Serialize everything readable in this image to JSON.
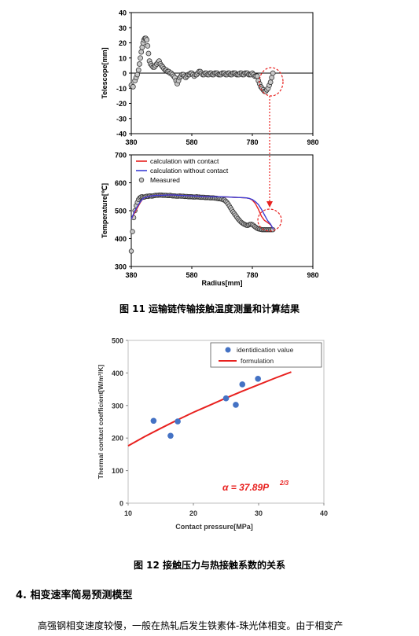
{
  "figure11": {
    "caption": "图 11  运输链传输接触温度测量和计算结果",
    "top_chart": {
      "ylabel": "Telescope[mm]",
      "yticks": [
        "40",
        "30",
        "20",
        "10",
        "0",
        "-10",
        "-20",
        "-30",
        "-40"
      ],
      "xticks": [
        "380",
        "580",
        "780",
        "980"
      ]
    },
    "bottom_chart": {
      "ylabel": "Temperature[℃]",
      "xlabel": "Radius[mm]",
      "yticks": [
        "700",
        "600",
        "500",
        "400",
        "300"
      ],
      "xticks": [
        "380",
        "580",
        "780",
        "980"
      ],
      "legend": [
        "calculation with contact",
        "calculation without contact",
        "Measured"
      ]
    }
  },
  "figure12": {
    "caption": "图 12  接触压力与热接触系数的关系",
    "ylabel": "Thermal contact coefficient[W/m²/K]",
    "xlabel": "Contact pressure[MPa]",
    "yticks": [
      "500",
      "400",
      "300",
      "200",
      "100",
      "0"
    ],
    "xticks": [
      "10",
      "20",
      "30",
      "40"
    ],
    "legend": [
      "identidication value",
      "formulation"
    ],
    "equation": "α = 37.89P",
    "equation_exp": "2/3"
  },
  "section": {
    "title": "4.  相变速率简易预测模型",
    "paragraph_start": "高强钢相变速度较慢，一般在热轧后发生铁素体-珠光体相变。由于相变产"
  },
  "colors": {
    "red_line": "#e8211f",
    "blue_line": "#3b3fd6",
    "blue_points": "#4472c4",
    "marker_fill": "#c8c8c8"
  },
  "chart_data": [
    {
      "type": "scatter",
      "title": "",
      "xlabel": "",
      "ylabel": "Telescope[mm]",
      "xlim": [
        380,
        980
      ],
      "ylim": [
        -40,
        40
      ],
      "grid": false,
      "series": [
        {
          "name": "",
          "x": [
            380,
            386,
            392,
            396,
            400,
            404,
            407,
            410,
            413,
            416,
            419,
            422,
            425,
            428,
            431,
            434,
            437,
            440,
            444,
            448,
            452,
            456,
            460,
            464,
            468,
            472,
            476,
            480,
            484,
            488,
            492,
            496,
            500,
            504,
            508,
            512,
            516,
            520,
            524,
            528,
            532,
            536,
            540,
            544,
            548,
            552,
            556,
            560,
            564,
            568,
            572,
            576,
            580,
            584,
            588,
            592,
            596,
            600,
            604,
            608,
            612,
            616,
            620,
            624,
            628,
            632,
            636,
            640,
            644,
            648,
            652,
            656,
            660,
            664,
            668,
            672,
            676,
            680,
            684,
            688,
            692,
            696,
            700,
            704,
            708,
            712,
            716,
            720,
            724,
            728,
            732,
            736,
            740,
            744,
            748,
            752,
            756,
            760,
            764,
            768,
            772,
            776,
            780,
            784,
            788,
            792,
            796,
            800,
            804,
            808,
            812,
            816,
            820,
            824,
            828,
            832,
            836,
            840,
            844,
            848
          ],
          "y": [
            -8,
            -9,
            -5,
            -3,
            -1,
            2,
            6,
            10,
            14,
            17,
            20,
            22,
            23,
            23,
            22,
            18,
            13,
            8,
            6,
            5,
            4,
            4,
            5,
            6,
            7,
            8,
            6,
            5,
            4,
            3,
            2,
            2,
            1,
            1,
            0,
            0,
            -1,
            -2,
            -3,
            -5,
            -7,
            -5,
            -3,
            -2,
            -1,
            -1,
            -2,
            -3,
            -2,
            -1,
            -1,
            0,
            0,
            -1,
            -2,
            -1,
            -1,
            0,
            1,
            1,
            0,
            -1,
            -1,
            0,
            0,
            -1,
            -1,
            0,
            0,
            -1,
            -1,
            0,
            0,
            0,
            -1,
            -1,
            -1,
            0,
            0,
            0,
            -1,
            -1,
            0,
            0,
            -1,
            -1,
            0,
            0,
            0,
            -1,
            -1,
            -1,
            0,
            0,
            -1,
            -1,
            0,
            0,
            0,
            -1,
            -1,
            -1,
            0,
            -1,
            -2,
            -2,
            -2,
            -5,
            -7,
            -9,
            -10,
            -11,
            -12,
            -12,
            -11,
            -10,
            -8,
            -6,
            -3,
            0
          ]
        }
      ]
    },
    {
      "type": "line",
      "title": "",
      "xlabel": "Radius[mm]",
      "ylabel": "Temperature[℃]",
      "xlim": [
        380,
        980
      ],
      "ylim": [
        300,
        700
      ],
      "legend_position": "top-left",
      "grid": false,
      "series": [
        {
          "name": "calculation with contact",
          "x": [
            380,
            390,
            400,
            410,
            420,
            440,
            460,
            480,
            500,
            520,
            540,
            560,
            580,
            600,
            620,
            640,
            660,
            680,
            700,
            720,
            740,
            760,
            770,
            780,
            790,
            800,
            810,
            820,
            830,
            840,
            850
          ],
          "y": [
            470,
            490,
            510,
            530,
            545,
            552,
            555,
            555,
            556,
            556,
            555,
            554,
            553,
            552,
            551,
            550,
            550,
            550,
            549,
            548,
            547,
            546,
            544,
            538,
            525,
            505,
            480,
            465,
            458,
            450,
            433
          ]
        },
        {
          "name": "calculation without contact",
          "x": [
            380,
            390,
            400,
            410,
            420,
            440,
            460,
            480,
            500,
            520,
            540,
            560,
            580,
            600,
            620,
            640,
            660,
            680,
            700,
            720,
            740,
            760,
            770,
            780,
            790,
            800,
            810,
            820,
            830,
            840,
            850
          ],
          "y": [
            470,
            495,
            515,
            532,
            545,
            552,
            555,
            555,
            556,
            556,
            555,
            554,
            553,
            552,
            551,
            550,
            550,
            550,
            549,
            548,
            547,
            546,
            544,
            540,
            532,
            522,
            505,
            485,
            465,
            452,
            433
          ]
        },
        {
          "name": "Measured",
          "x": [
            380,
            384,
            388,
            392,
            396,
            400,
            404,
            408,
            412,
            416,
            420,
            424,
            428,
            432,
            436,
            440,
            444,
            448,
            452,
            456,
            460,
            464,
            468,
            472,
            476,
            480,
            484,
            488,
            492,
            496,
            500,
            504,
            508,
            512,
            516,
            520,
            524,
            528,
            532,
            536,
            540,
            544,
            548,
            552,
            556,
            560,
            564,
            568,
            572,
            576,
            580,
            584,
            588,
            592,
            596,
            600,
            604,
            608,
            612,
            616,
            620,
            624,
            628,
            632,
            636,
            640,
            644,
            648,
            652,
            656,
            660,
            664,
            668,
            672,
            676,
            680,
            684,
            688,
            692,
            696,
            700,
            704,
            708,
            712,
            716,
            720,
            724,
            728,
            732,
            736,
            740,
            744,
            748,
            752,
            756,
            760,
            764,
            768,
            772,
            776,
            780,
            784,
            788,
            792,
            796,
            800,
            804,
            808,
            812,
            816,
            820,
            824,
            828,
            832,
            836,
            840,
            844,
            848
          ],
          "y": [
            355,
            425,
            475,
            500,
            518,
            530,
            540,
            546,
            549,
            550,
            548,
            549,
            551,
            552,
            551,
            553,
            553,
            552,
            553,
            554,
            555,
            555,
            555,
            556,
            556,
            556,
            555,
            555,
            555,
            555,
            554,
            554,
            555,
            554,
            553,
            553,
            553,
            552,
            552,
            552,
            553,
            552,
            552,
            552,
            551,
            551,
            551,
            550,
            550,
            550,
            550,
            549,
            549,
            549,
            550,
            549,
            549,
            548,
            548,
            548,
            548,
            547,
            547,
            547,
            547,
            546,
            546,
            546,
            546,
            545,
            545,
            544,
            543,
            543,
            542,
            541,
            539,
            538,
            534,
            530,
            524,
            517,
            510,
            503,
            496,
            490,
            484,
            478,
            472,
            467,
            462,
            458,
            455,
            452,
            450,
            448,
            447,
            449,
            451,
            452,
            450,
            447,
            443,
            440,
            437,
            435,
            434,
            433,
            432,
            432,
            432,
            432,
            432,
            432,
            432,
            432,
            432,
            432
          ]
        }
      ]
    },
    {
      "type": "scatter",
      "title": "",
      "xlabel": "Contact pressure[MPa]",
      "ylabel": "Thermal contact coefficient[W/m²/K]",
      "xlim": [
        10,
        40
      ],
      "ylim": [
        0,
        500
      ],
      "legend_position": "top-right",
      "grid": false,
      "series": [
        {
          "name": "identidication value",
          "x": [
            13.9,
            16.5,
            17.6,
            25,
            26.5,
            27.5,
            29.9
          ],
          "y": [
            253,
            207,
            251,
            322,
            302,
            365,
            382
          ]
        },
        {
          "name": "formulation",
          "x": [
            10,
            12.5,
            15,
            17.5,
            20,
            22.5,
            25,
            27.5,
            30,
            32.5,
            35
          ],
          "y": [
            176,
            204,
            230,
            255,
            279,
            301,
            323,
            344,
            364,
            384,
            403
          ]
        }
      ]
    }
  ]
}
